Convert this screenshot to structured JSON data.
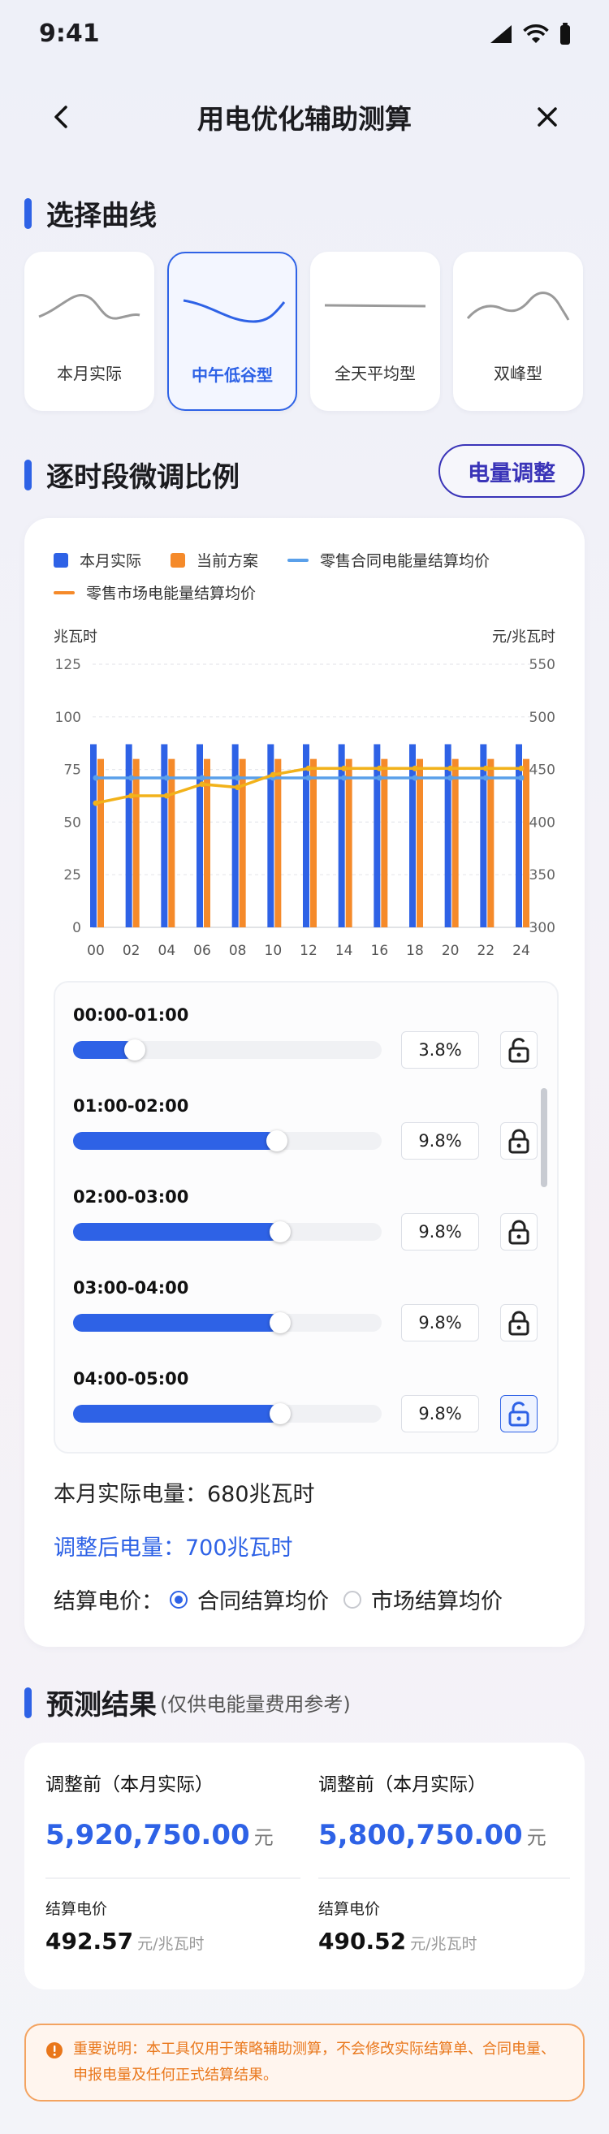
{
  "status": {
    "time": "9:41"
  },
  "nav": {
    "title": "用电优化辅助测算"
  },
  "curve_section": {
    "title": "选择曲线",
    "cards": [
      {
        "label": "本月实际",
        "icon": "curve-actual-icon",
        "selected": false
      },
      {
        "label": "中午低谷型",
        "icon": "curve-noon-valley-icon",
        "selected": true
      },
      {
        "label": "全天平均型",
        "icon": "curve-flat-icon",
        "selected": false
      },
      {
        "label": "双峰型",
        "icon": "curve-double-peak-icon",
        "selected": false
      }
    ]
  },
  "adjust_section": {
    "title": "逐时段微调比例",
    "adjust_button": "电量调整"
  },
  "chart_data": {
    "type": "bar",
    "legend": [
      "本月实际",
      "当前方案",
      "零售合同电能量结算均价",
      "零售市场电能量结算均价"
    ],
    "ylabel_left": "兆瓦时",
    "ylabel_right": "元/兆瓦时",
    "yticks_left": [
      "125",
      "100",
      "75",
      "50",
      "25",
      "0"
    ],
    "yticks_right": [
      "550",
      "500",
      "450",
      "400",
      "350",
      "300"
    ],
    "ylim_left": [
      0,
      125
    ],
    "ylim_right": [
      300,
      550
    ],
    "xticks": [
      "00",
      "02",
      "04",
      "06",
      "08",
      "10",
      "12",
      "14",
      "16",
      "18",
      "20",
      "22",
      "24"
    ],
    "series": [
      {
        "name": "本月实际",
        "type": "bar",
        "color": "#2e62e6",
        "values": [
          87,
          87,
          87,
          87,
          87,
          87,
          87,
          87,
          87,
          87,
          87,
          87,
          87
        ]
      },
      {
        "name": "当前方案",
        "type": "bar",
        "color": "#f58a2a",
        "values": [
          80,
          80,
          80,
          80,
          80,
          80,
          80,
          80,
          80,
          80,
          80,
          80,
          80
        ]
      },
      {
        "name": "零售合同电能量结算均价",
        "type": "line",
        "color": "#5aa0ea",
        "values": [
          442,
          442,
          442,
          442,
          442,
          442,
          442,
          442,
          442,
          442,
          442,
          442,
          442
        ]
      },
      {
        "name": "零售市场电能量结算均价",
        "type": "line",
        "color": "#f2b21a",
        "values": [
          418,
          425,
          425,
          436,
          433,
          445,
          451,
          451,
          451,
          451,
          451,
          451,
          451
        ]
      }
    ]
  },
  "slots": [
    {
      "time": "00:00-01:00",
      "percent": "3.8%",
      "fill": 0.2,
      "locked": false
    },
    {
      "time": "01:00-02:00",
      "percent": "9.8%",
      "fill": 0.66,
      "locked": false
    },
    {
      "time": "02:00-03:00",
      "percent": "9.8%",
      "fill": 0.67,
      "locked": false
    },
    {
      "time": "03:00-04:00",
      "percent": "9.8%",
      "fill": 0.67,
      "locked": false
    },
    {
      "time": "04:00-05:00",
      "percent": "9.8%",
      "fill": 0.67,
      "locked": true
    }
  ],
  "info": {
    "actual_label": "本月实际电量：680兆瓦时",
    "adjusted_label": "调整后电量：700兆瓦时",
    "price_label": "结算电价：",
    "option_contract": "合同结算均价",
    "option_market": "市场结算均价",
    "selected_option": "contract"
  },
  "forecast": {
    "title": "预测结果",
    "subtitle": "(仅供电能量费用参考)",
    "left": {
      "label": "调整前（本月实际）",
      "amount": "5,920,750.00",
      "unit": "元",
      "price_label": "结算电价",
      "price": "492.57",
      "price_unit": "元/兆瓦时"
    },
    "right": {
      "label": "调整前（本月实际）",
      "amount": "5,800,750.00",
      "unit": "元",
      "price_label": "结算电价",
      "price": "490.52",
      "price_unit": "元/兆瓦时"
    }
  },
  "notice": {
    "text": "重要说明：本工具仅用于策略辅助测算，不会修改实际结算单、合同电量、申报电量及任何正式结算结果。"
  }
}
